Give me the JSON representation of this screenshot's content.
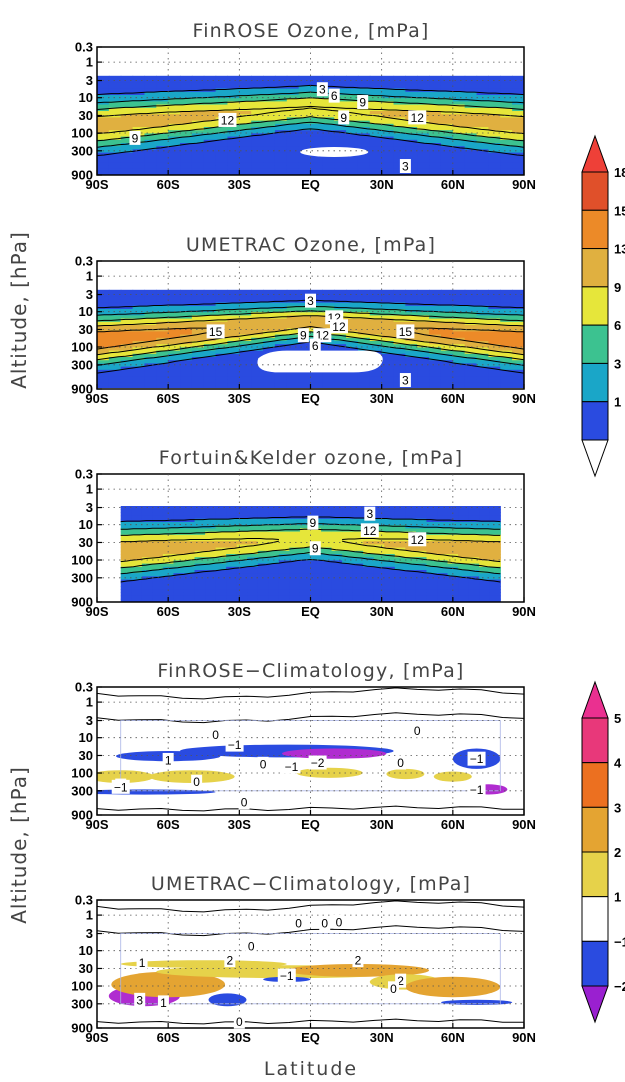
{
  "figure": {
    "ylabel_top": "Altitude, [hPa]",
    "ylabel_bottom": "Altitude, [hPa]",
    "xlabel": "Latitude"
  },
  "chart_data": [
    {
      "type": "heatmap",
      "title": "FinROSE Ozone, [mPa]",
      "x_ticks": [
        "90S",
        "60S",
        "30S",
        "EQ",
        "30N",
        "60N",
        "90N"
      ],
      "y_ticks": [
        "0.3",
        "1",
        "3",
        "10",
        "30",
        "100",
        "300",
        "900"
      ],
      "colorbar": "abs",
      "contour_labels": [
        "3",
        "6",
        "9",
        "9",
        "12",
        "12",
        "9",
        "3"
      ],
      "field": "finrose"
    },
    {
      "type": "heatmap",
      "title": "UMETRAC Ozone, [mPa]",
      "x_ticks": [
        "90S",
        "60S",
        "30S",
        "EQ",
        "30N",
        "60N",
        "90N"
      ],
      "y_ticks": [
        "0.3",
        "1",
        "3",
        "10",
        "30",
        "100",
        "300",
        "900"
      ],
      "colorbar": "abs",
      "contour_labels": [
        "3",
        "12",
        "12",
        "9",
        "12",
        "15",
        "15",
        "6",
        "3"
      ],
      "field": "umetrac"
    },
    {
      "type": "heatmap",
      "title": "Fortuin&Kelder ozone, [mPa]",
      "x_ticks": [
        "90S",
        "60S",
        "30S",
        "EQ",
        "30N",
        "60N",
        "90N"
      ],
      "y_ticks": [
        "0.3",
        "1",
        "3",
        "10",
        "30",
        "100",
        "300",
        "900"
      ],
      "colorbar": "abs",
      "contour_labels": [
        "3",
        "9",
        "12",
        "12",
        "9"
      ],
      "field": "fk"
    },
    {
      "type": "heatmap",
      "title": "FinROSE−Climatology, [mPa]",
      "x_ticks": [
        "90S",
        "60S",
        "30S",
        "EQ",
        "30N",
        "60N",
        "90N"
      ],
      "y_ticks": [
        "0.3",
        "1",
        "3",
        "10",
        "30",
        "100",
        "300",
        "900"
      ],
      "colorbar": "diff",
      "contour_labels": [
        "0",
        "0",
        "−1",
        "1",
        "0",
        "−1",
        "−2",
        "0",
        "−1",
        "−1",
        "1",
        "0",
        "0",
        "−1"
      ],
      "field": "fin_diff"
    },
    {
      "type": "heatmap",
      "title": "UMETRAC−Climatology, [mPa]",
      "x_ticks": [
        "90S",
        "60S",
        "30S",
        "EQ",
        "30N",
        "60N",
        "90N"
      ],
      "y_ticks": [
        "0.3",
        "1",
        "3",
        "10",
        "30",
        "100",
        "300",
        "900"
      ],
      "colorbar": "diff",
      "contour_labels": [
        "0",
        "0",
        "0",
        "0",
        "1",
        "2",
        "2",
        "−1",
        "2",
        "0",
        "3",
        "1",
        "0"
      ],
      "field": "ume_diff"
    }
  ],
  "colorbars": {
    "abs": {
      "labels": [
        "18",
        "15",
        "13",
        "9",
        "6",
        "3",
        "1"
      ],
      "colors": [
        "#e0502a",
        "#ec8a28",
        "#e0b040",
        "#e6e63a",
        "#3cc290",
        "#1aa6c8",
        "#2a4be0"
      ],
      "over": "#ee4038",
      "under": "#ffffff"
    },
    "diff": {
      "labels": [
        "5",
        "4",
        "3",
        "2",
        "1",
        "−1",
        "−2"
      ],
      "colors": [
        "#e8387a",
        "#ec7020",
        "#e4a432",
        "#e6d24a",
        "#ffffff",
        "#2a4be0"
      ],
      "over": "#ea3090",
      "under": "#9a20d0"
    }
  }
}
